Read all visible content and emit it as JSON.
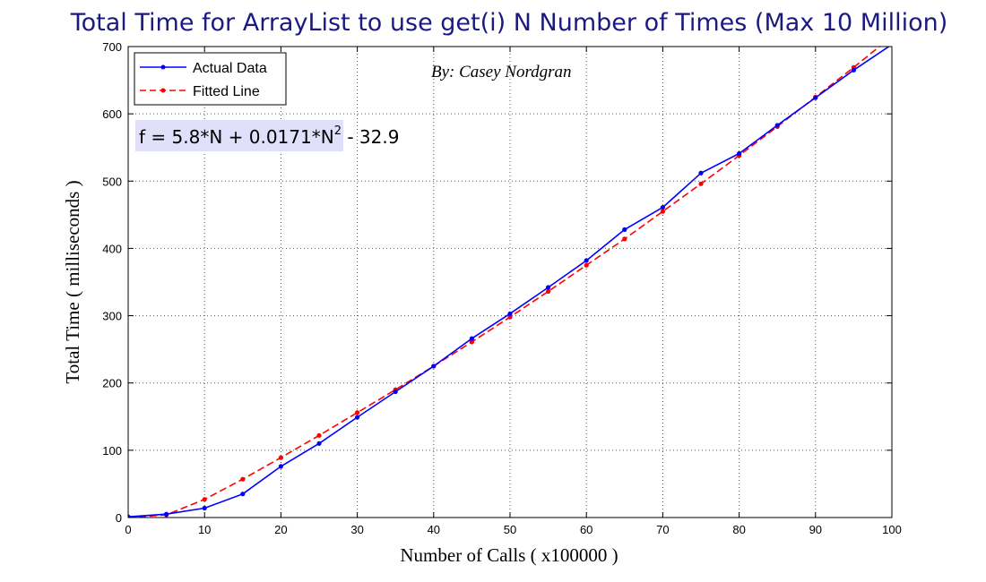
{
  "chart_data": {
    "type": "line",
    "title": "Total Time for ArrayList to use get(i)  N  Number of Times (Max 10 Million)",
    "xlabel": "Number of Calls ( x100000 )",
    "ylabel": "Total Time ( milliseconds )",
    "xlim": [
      0,
      100
    ],
    "ylim": [
      0,
      700
    ],
    "xticks": [
      0,
      10,
      20,
      30,
      40,
      50,
      60,
      70,
      80,
      90,
      100
    ],
    "yticks": [
      0,
      100,
      200,
      300,
      400,
      500,
      600,
      700
    ],
    "grid": true,
    "legend_position": "top-left",
    "series": [
      {
        "name": "Actual Data",
        "color": "#0000ff",
        "line_style": "solid",
        "marker": "dot",
        "x": [
          0,
          5,
          10,
          15,
          20,
          25,
          30,
          35,
          40,
          45,
          50,
          55,
          60,
          65,
          70,
          75,
          80,
          85,
          90,
          95,
          100
        ],
        "y": [
          1,
          5,
          14,
          35,
          76,
          110,
          149,
          187,
          225,
          266,
          303,
          342,
          382,
          428,
          461,
          512,
          541,
          583,
          624,
          665,
          703
        ]
      },
      {
        "name": "Fitted Line",
        "color": "#ff0000",
        "line_style": "dashed",
        "marker": "dot",
        "x": [
          0,
          5,
          10,
          15,
          20,
          25,
          30,
          35,
          40,
          45,
          50,
          55,
          60,
          65,
          70,
          75,
          80,
          85,
          90,
          95,
          100
        ],
        "y": [
          0,
          4,
          27,
          57,
          89,
          122,
          156,
          190,
          225,
          261,
          298,
          336,
          375,
          414,
          455,
          496,
          538,
          581,
          625,
          669,
          715
        ]
      }
    ],
    "annotations": {
      "author": "By: Casey Nordgran",
      "equation_main": "f = 5.8*N + 0.0171*N",
      "equation_sup": "2",
      "equation_tail": " - 32.9"
    }
  },
  "colors": {
    "title": "#1a1a80",
    "equation_box": "#e0e0fa",
    "grid": "#555555"
  }
}
